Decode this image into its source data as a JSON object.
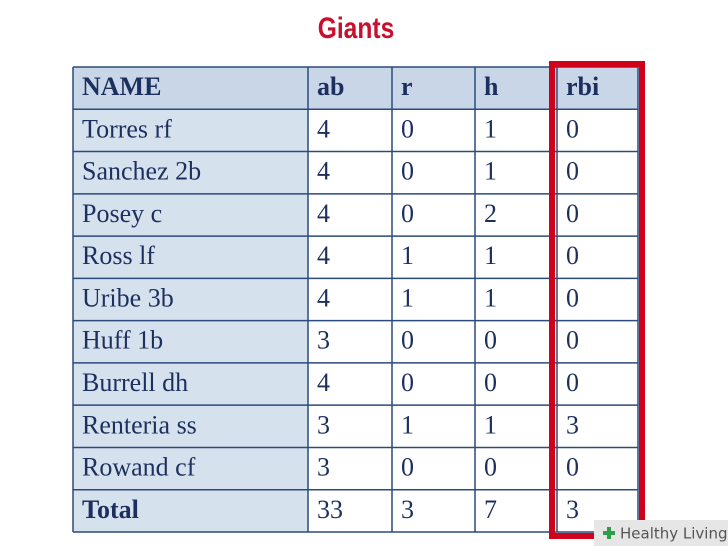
{
  "title": "Giants",
  "table": {
    "header": [
      "NAME",
      "ab",
      "r",
      "h",
      "rbi"
    ],
    "rows": [
      [
        "Torres rf",
        4,
        0,
        1,
        0
      ],
      [
        "Sanchez 2b",
        4,
        0,
        1,
        0
      ],
      [
        "Posey c",
        4,
        0,
        2,
        0
      ],
      [
        "Ross lf",
        4,
        1,
        1,
        0
      ],
      [
        "Uribe 3b",
        4,
        1,
        1,
        0
      ],
      [
        "Huff 1b",
        3,
        0,
        0,
        0
      ],
      [
        "Burrell dh",
        4,
        0,
        0,
        0
      ],
      [
        "Renteria ss",
        3,
        1,
        1,
        3
      ],
      [
        "Rowand cf",
        3,
        0,
        0,
        0
      ],
      [
        "Total",
        33,
        3,
        7,
        3
      ]
    ]
  },
  "watermark": "Healthy Living"
}
